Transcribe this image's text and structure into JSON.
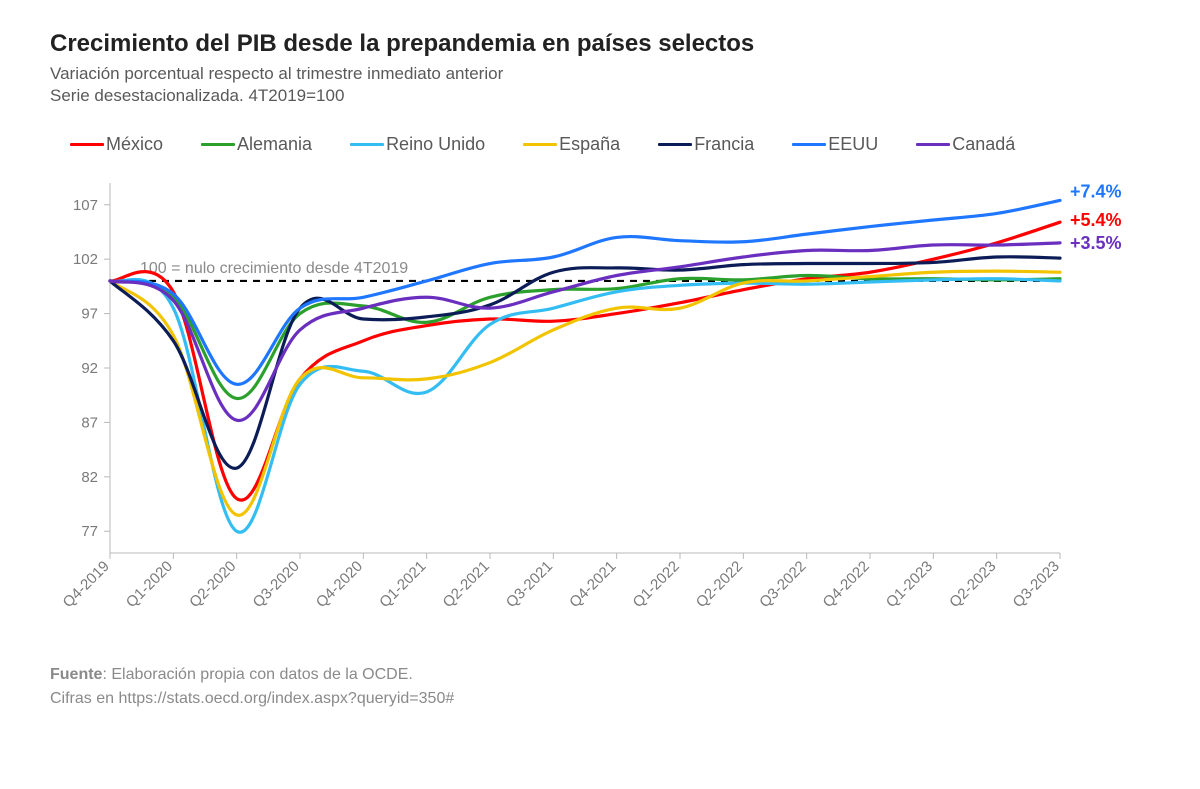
{
  "title": "Crecimiento del PIB desde la prepandemia en países selectos",
  "subtitle1": "Variación porcentual respecto al trimestre inmediato anterior",
  "subtitle2": "Serie desestacionalizada. 4T2019=100",
  "source_label": "Fuente",
  "source_text": ": Elaboración propia con datos de la OCDE.",
  "source_line2": "Cifras en https://stats.oecd.org/index.aspx?queryid=350#",
  "chart": {
    "type": "line",
    "background_color": "#ffffff",
    "axis_color": "#b8b8b8",
    "axis_text_color": "#7a7a7a",
    "axis_fontsize": 15,
    "line_width": 3.2,
    "x_categories": [
      "Q4-2019",
      "Q1-2020",
      "Q2-2020",
      "Q3-2020",
      "Q4-2020",
      "Q1-2021",
      "Q2-2021",
      "Q3-2021",
      "Q4-2021",
      "Q1-2022",
      "Q2-2022",
      "Q3-2022",
      "Q4-2022",
      "Q1-2023",
      "Q2-2023",
      "Q3-2023"
    ],
    "x_tick_rotation": -45,
    "ylim": [
      75,
      109
    ],
    "yticks": [
      77,
      82,
      87,
      92,
      97,
      102,
      107
    ],
    "reference_line": {
      "y": 100,
      "label": "100 = nulo crecimiento desde 4T2019",
      "dash": "7 6",
      "color": "#000000",
      "width": 2.2
    },
    "series": [
      {
        "name": "México",
        "color": "#ff0000",
        "values": [
          100,
          99.0,
          80.0,
          91.0,
          94.5,
          95.9,
          96.5,
          96.3,
          97.0,
          98.0,
          99.2,
          100.2,
          100.8,
          102.0,
          103.5,
          105.4
        ]
      },
      {
        "name": "Alemania",
        "color": "#2ca02c",
        "values": [
          100,
          98.5,
          89.2,
          97.0,
          97.7,
          96.2,
          98.5,
          99.2,
          99.3,
          100.2,
          100.1,
          100.5,
          100.2,
          100.2,
          100.1,
          100.2
        ]
      },
      {
        "name": "Reino Unido",
        "color": "#33bdf2",
        "values": [
          100,
          97.5,
          77.0,
          90.5,
          91.7,
          89.8,
          96.0,
          97.5,
          99.0,
          99.6,
          99.8,
          99.7,
          99.9,
          100.1,
          100.2,
          100.0
        ]
      },
      {
        "name": "España",
        "color": "#f2c400",
        "values": [
          100,
          95.0,
          78.5,
          91.0,
          91.1,
          91.0,
          92.5,
          95.5,
          97.5,
          97.5,
          99.8,
          100.0,
          100.4,
          100.8,
          100.9,
          100.8
        ]
      },
      {
        "name": "Francia",
        "color": "#0b1c57",
        "values": [
          100,
          94.5,
          82.8,
          97.5,
          96.5,
          96.7,
          97.8,
          100.8,
          101.2,
          101.0,
          101.5,
          101.6,
          101.6,
          101.7,
          102.2,
          102.1
        ]
      },
      {
        "name": "EEUU",
        "color": "#1f77ff",
        "values": [
          100,
          98.8,
          90.5,
          97.5,
          98.5,
          100.0,
          101.6,
          102.2,
          104.0,
          103.7,
          103.6,
          104.3,
          105.0,
          105.6,
          106.2,
          107.4
        ]
      },
      {
        "name": "Canadá",
        "color": "#6a2fbf",
        "values": [
          100,
          98.2,
          87.2,
          95.5,
          97.5,
          98.5,
          97.5,
          99.0,
          100.5,
          101.3,
          102.2,
          102.8,
          102.8,
          103.3,
          103.3,
          103.5
        ]
      }
    ],
    "end_labels": [
      {
        "text": "+7.4%",
        "color": "#1f77ff",
        "y": 107.4,
        "dy": -3
      },
      {
        "text": "+5.4%",
        "color": "#ff0000",
        "y": 105.4,
        "dy": 4
      },
      {
        "text": "+3.5%",
        "color": "#6a2fbf",
        "y": 103.5,
        "dy": 6
      }
    ]
  }
}
